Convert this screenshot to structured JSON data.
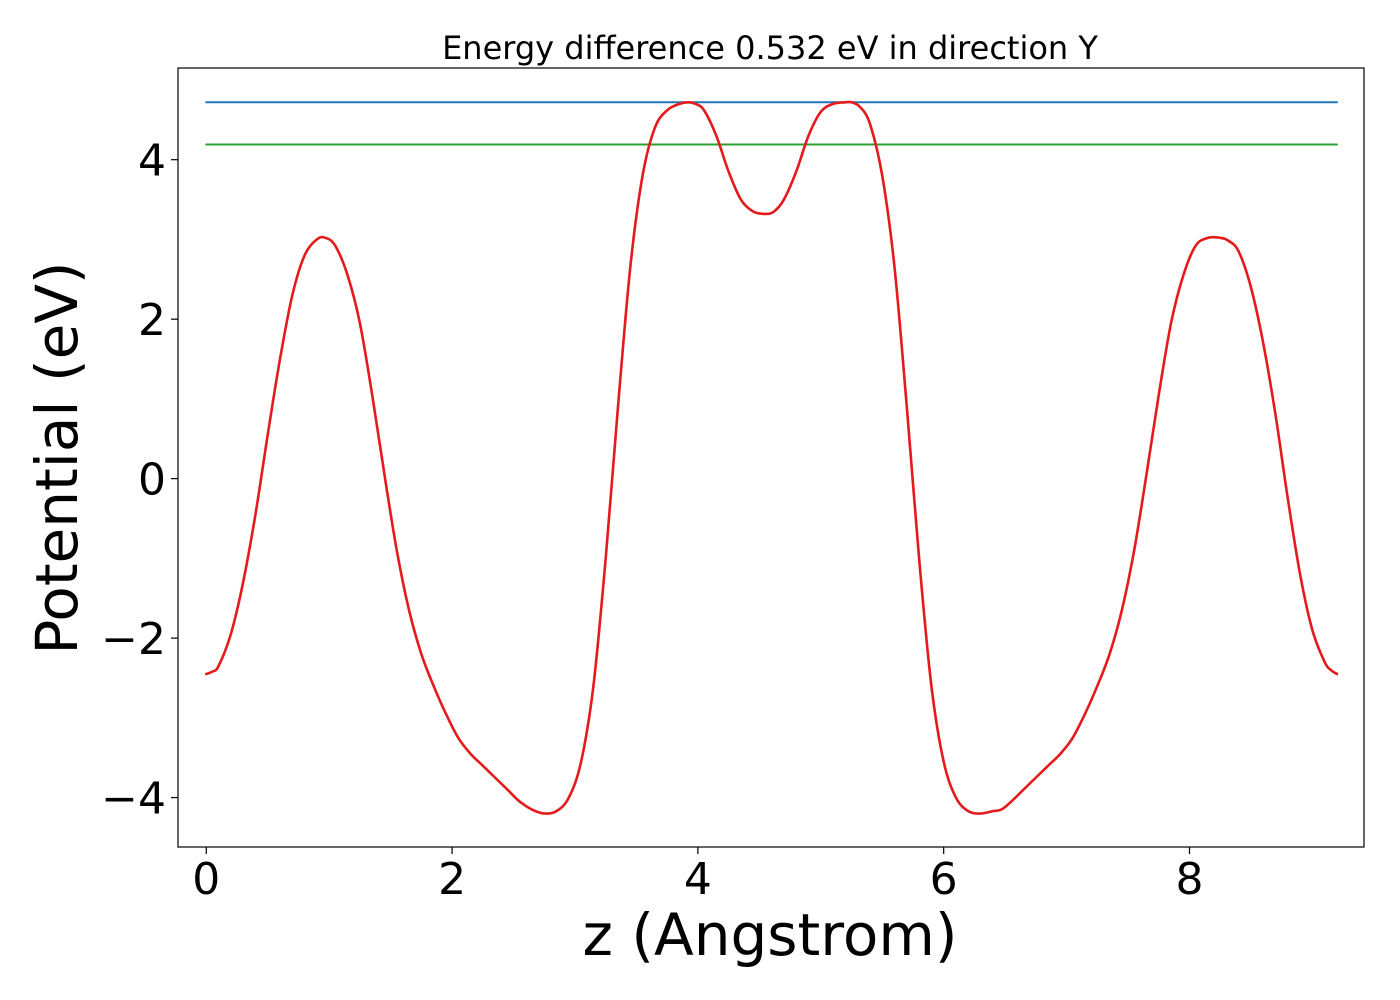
{
  "chart_data": {
    "type": "line",
    "title": "Energy difference 0.532 eV in direction Y",
    "xlabel": "z (Angstrom)",
    "ylabel": "Potential (eV)",
    "xlim": [
      -0.23,
      9.42
    ],
    "ylim": [
      -4.62,
      5.15
    ],
    "xticks": [
      0,
      2,
      4,
      6,
      8
    ],
    "xtick_labels": [
      "0",
      "2",
      "4",
      "6",
      "8"
    ],
    "yticks": [
      -4,
      -2,
      0,
      2,
      4
    ],
    "ytick_labels": [
      "−4",
      "−2",
      "0",
      "2",
      "4"
    ],
    "grid": false,
    "series": [
      {
        "color": "#1f77b4",
        "style": "hline",
        "x": [
          0.0,
          9.2
        ],
        "y": [
          4.72,
          4.72
        ]
      },
      {
        "color": "#2ca02c",
        "style": "hline",
        "x": [
          0.0,
          9.2
        ],
        "y": [
          4.19,
          4.19
        ]
      },
      {
        "color": "#e41a1c",
        "style": "curve",
        "x": [
          0.0,
          0.05,
          0.1,
          0.2,
          0.3,
          0.4,
          0.5,
          0.6,
          0.7,
          0.8,
          0.9,
          0.97,
          1.05,
          1.15,
          1.25,
          1.35,
          1.45,
          1.55,
          1.65,
          1.75,
          1.85,
          1.95,
          2.05,
          2.15,
          2.25,
          2.35,
          2.45,
          2.55,
          2.65,
          2.75,
          2.85,
          2.95,
          3.05,
          3.15,
          3.25,
          3.35,
          3.45,
          3.55,
          3.65,
          3.75,
          3.85,
          3.92,
          3.98,
          4.05,
          4.15,
          4.25,
          4.35,
          4.45,
          4.55,
          4.62,
          4.7,
          4.8,
          4.9,
          5.0,
          5.1,
          5.2,
          5.25,
          5.32,
          5.4,
          5.5,
          5.6,
          5.7,
          5.8,
          5.9,
          6.0,
          6.1,
          6.2,
          6.3,
          6.4,
          6.47,
          6.55,
          6.65,
          6.75,
          6.85,
          6.95,
          7.05,
          7.15,
          7.25,
          7.35,
          7.45,
          7.55,
          7.65,
          7.75,
          7.85,
          7.95,
          8.05,
          8.15,
          8.25,
          8.32,
          8.4,
          8.5,
          8.6,
          8.7,
          8.8,
          8.9,
          9.0,
          9.1,
          9.15,
          9.2
        ],
        "y": [
          -2.45,
          -2.42,
          -2.35,
          -1.95,
          -1.3,
          -0.45,
          0.55,
          1.5,
          2.3,
          2.8,
          3.0,
          3.02,
          2.92,
          2.55,
          1.95,
          1.05,
          0.05,
          -0.9,
          -1.65,
          -2.2,
          -2.6,
          -2.95,
          -3.25,
          -3.45,
          -3.6,
          -3.75,
          -3.9,
          -4.05,
          -4.15,
          -4.2,
          -4.17,
          -4.0,
          -3.55,
          -2.6,
          -1.0,
          0.9,
          2.65,
          3.8,
          4.4,
          4.62,
          4.7,
          4.72,
          4.7,
          4.62,
          4.3,
          3.85,
          3.5,
          3.35,
          3.32,
          3.35,
          3.5,
          3.85,
          4.3,
          4.6,
          4.7,
          4.72,
          4.72,
          4.66,
          4.45,
          3.8,
          2.65,
          0.9,
          -1.0,
          -2.6,
          -3.55,
          -4.0,
          -4.17,
          -4.2,
          -4.17,
          -4.15,
          -4.05,
          -3.9,
          -3.75,
          -3.6,
          -3.45,
          -3.25,
          -2.95,
          -2.6,
          -2.2,
          -1.65,
          -0.9,
          0.05,
          1.05,
          1.95,
          2.55,
          2.92,
          3.02,
          3.02,
          2.98,
          2.85,
          2.4,
          1.7,
          0.8,
          -0.25,
          -1.2,
          -1.9,
          -2.3,
          -2.4,
          -2.45
        ]
      }
    ]
  }
}
